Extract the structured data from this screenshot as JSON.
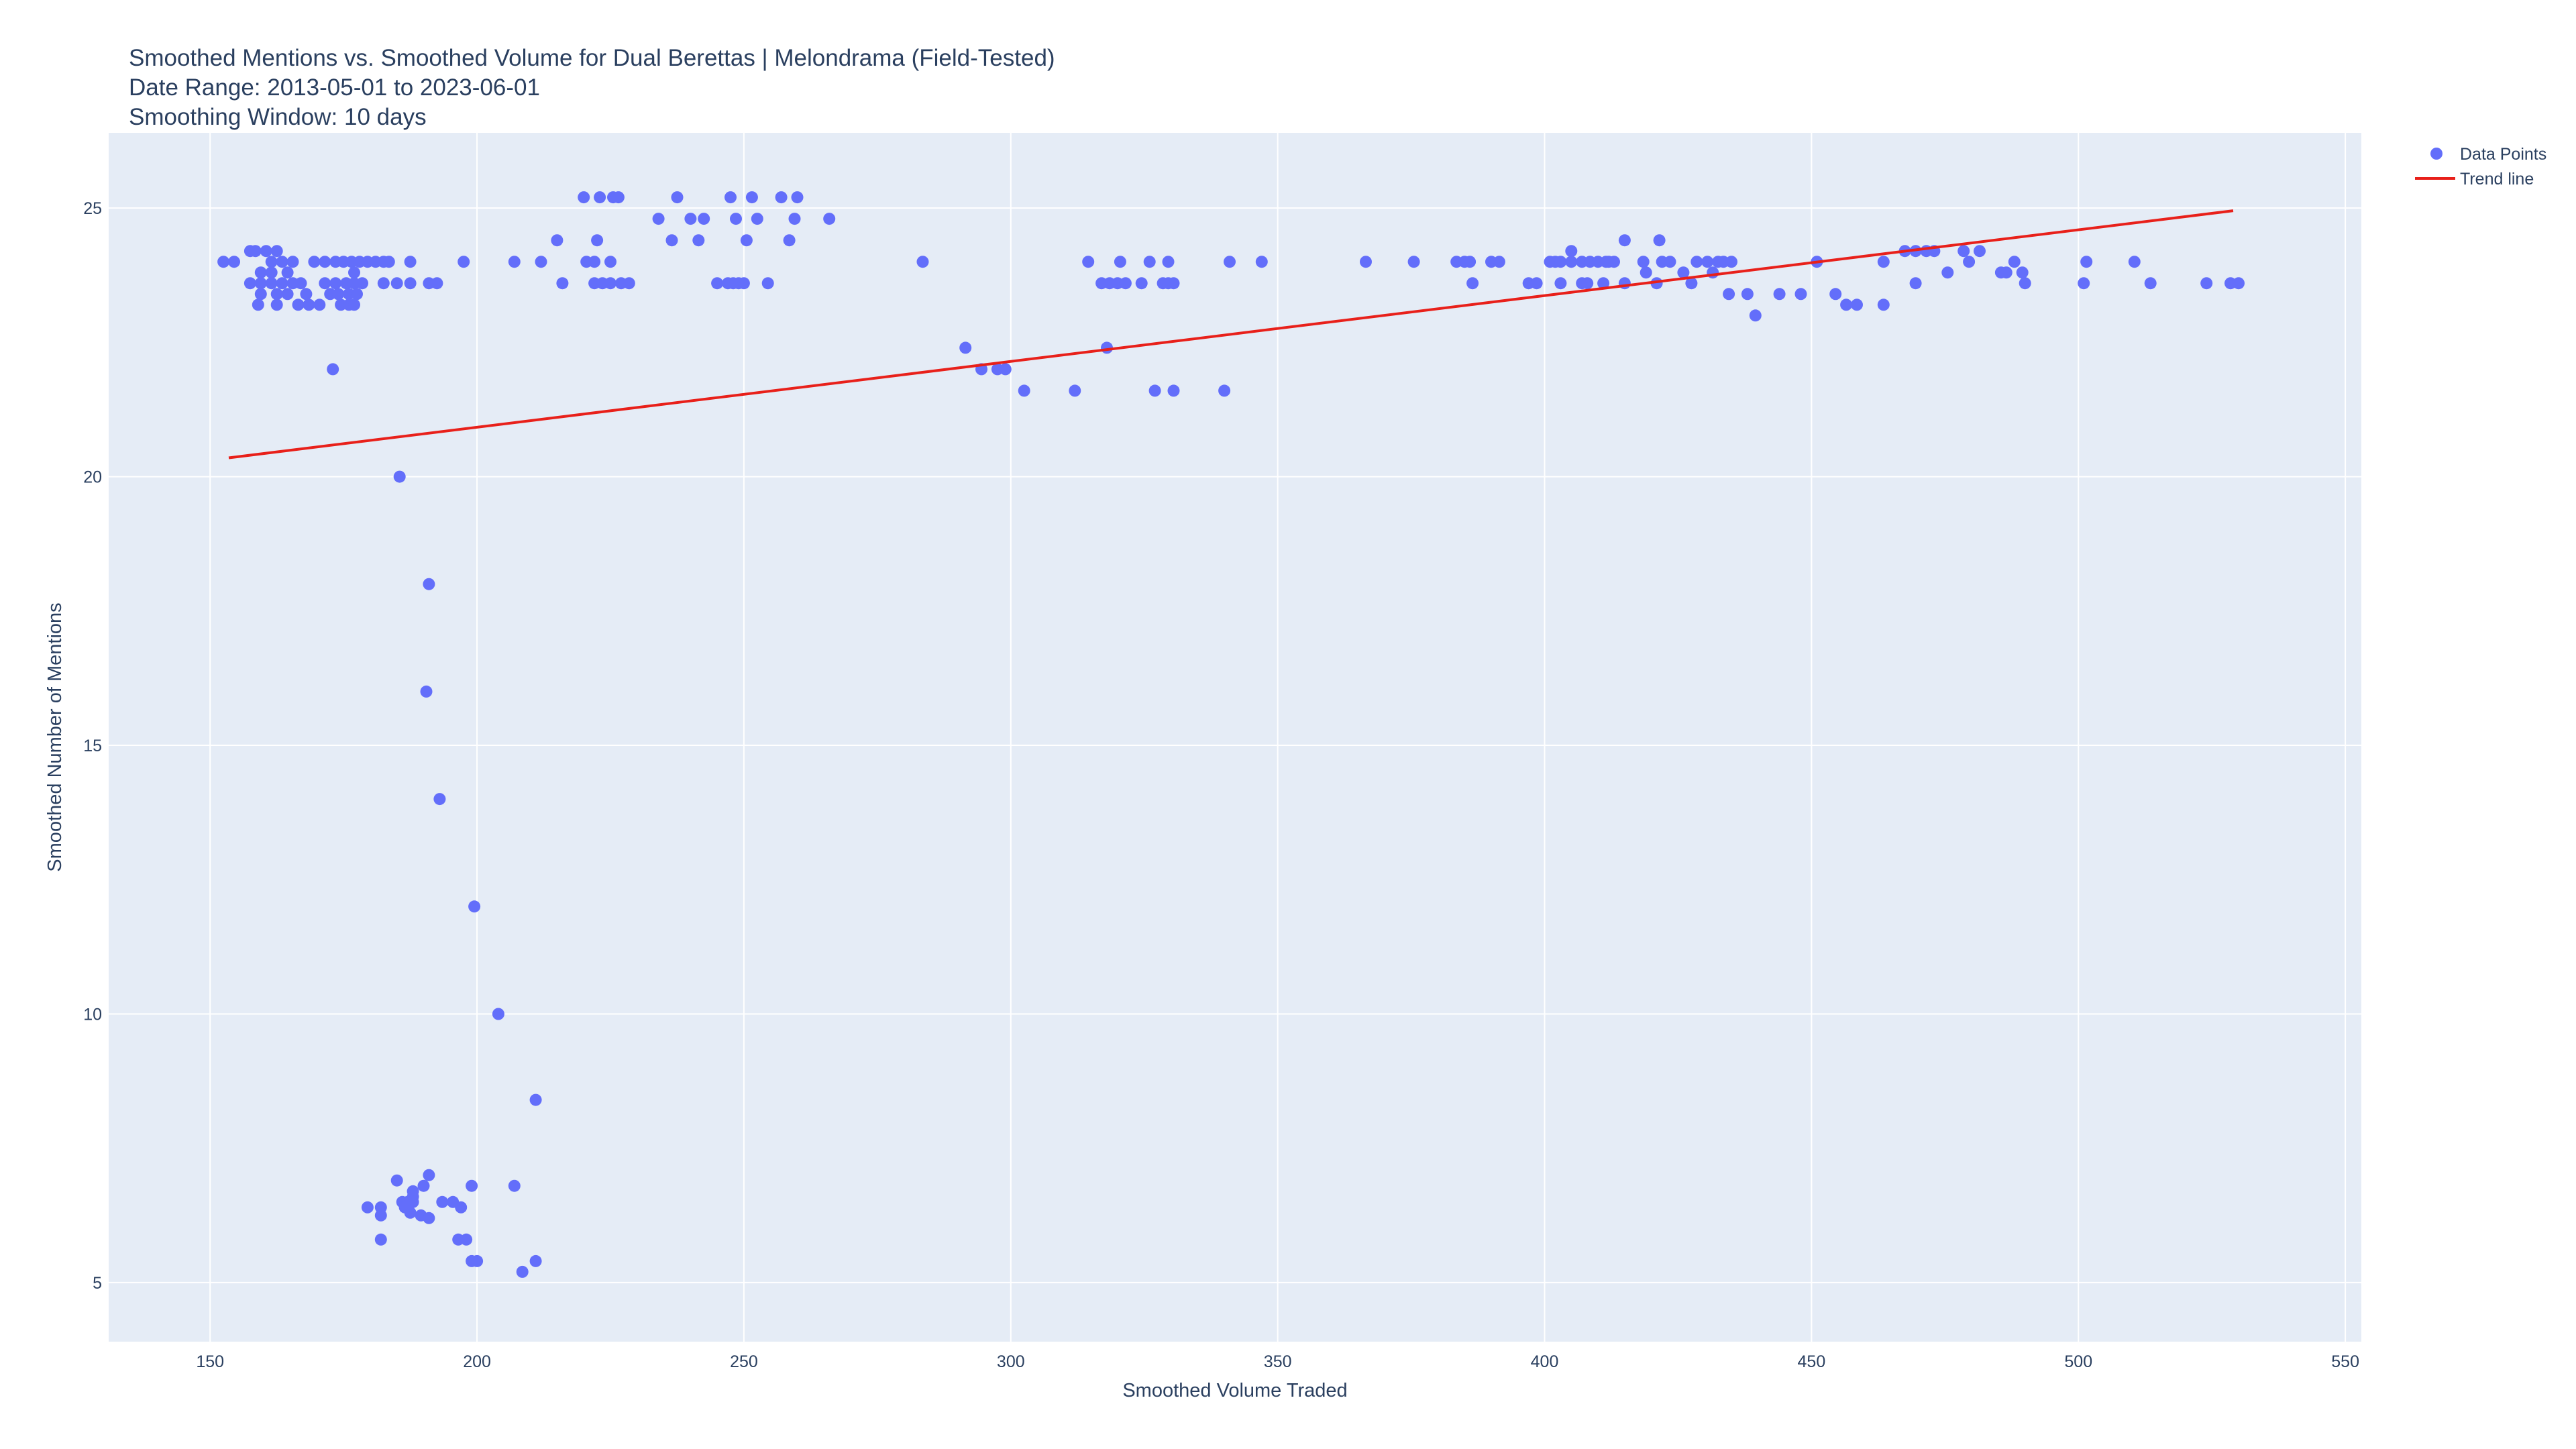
{
  "chart_data": {
    "type": "scatter",
    "title_lines": [
      "Smoothed Mentions vs. Smoothed Volume for Dual Berettas | Melondrama (Field-Tested)",
      "Date Range: 2013-05-01 to 2023-06-01",
      "Smoothing Window: 10 days"
    ],
    "xlabel": "Smoothed Volume Traded",
    "ylabel": "Smoothed Number of Mentions",
    "xlim": [
      131,
      553
    ],
    "ylim": [
      3.9,
      26.4
    ],
    "x_ticks": [
      150,
      200,
      250,
      300,
      350,
      400,
      450,
      500,
      550
    ],
    "y_ticks": [
      5,
      10,
      15,
      20,
      25
    ],
    "x_tick_labels": [
      "150",
      "200",
      "250",
      "300",
      "350",
      "400",
      "450",
      "500",
      "550"
    ],
    "y_tick_labels": [
      "5",
      "10",
      "15",
      "20",
      "25"
    ],
    "grid": true,
    "legend_position": "top-right",
    "legend": [
      {
        "label": "Data Points",
        "kind": "marker",
        "color": "#636efa"
      },
      {
        "label": "Trend line",
        "kind": "line",
        "color": "#e8201a"
      }
    ],
    "colors": {
      "plot_bg": "#e5ecf6",
      "grid": "#ffffff",
      "points": "#636efa",
      "trend": "#e8201a",
      "text": "#2a3f5f"
    },
    "series": [
      {
        "name": "Data Points",
        "mode": "markers",
        "points": [
          [
            152.5,
            24.0
          ],
          [
            154.5,
            24.0
          ],
          [
            157.5,
            24.2
          ],
          [
            158.5,
            24.2
          ],
          [
            160.5,
            24.2
          ],
          [
            162.5,
            24.2
          ],
          [
            161.5,
            24.0
          ],
          [
            163.5,
            24.0
          ],
          [
            165.5,
            24.0
          ],
          [
            159.5,
            23.8
          ],
          [
            161.5,
            23.8
          ],
          [
            164.5,
            23.8
          ],
          [
            157.5,
            23.6
          ],
          [
            159.5,
            23.6
          ],
          [
            161.5,
            23.6
          ],
          [
            163.5,
            23.6
          ],
          [
            165.5,
            23.6
          ],
          [
            167.0,
            23.6
          ],
          [
            159.5,
            23.4
          ],
          [
            162.5,
            23.4
          ],
          [
            164.5,
            23.4
          ],
          [
            168.0,
            23.4
          ],
          [
            159.0,
            23.2
          ],
          [
            162.5,
            23.2
          ],
          [
            166.5,
            23.2
          ],
          [
            168.5,
            23.2
          ],
          [
            170.5,
            23.2
          ],
          [
            169.5,
            24.0
          ],
          [
            171.5,
            24.0
          ],
          [
            173.5,
            24.0
          ],
          [
            175.0,
            24.0
          ],
          [
            176.5,
            24.0
          ],
          [
            178.0,
            24.0
          ],
          [
            179.5,
            24.0
          ],
          [
            181.0,
            24.0
          ],
          [
            182.5,
            24.0
          ],
          [
            183.5,
            24.0
          ],
          [
            171.5,
            23.6
          ],
          [
            173.5,
            23.6
          ],
          [
            175.5,
            23.6
          ],
          [
            177.0,
            23.6
          ],
          [
            178.5,
            23.6
          ],
          [
            172.5,
            23.4
          ],
          [
            174.0,
            23.4
          ],
          [
            176.0,
            23.4
          ],
          [
            177.5,
            23.4
          ],
          [
            174.5,
            23.2
          ],
          [
            176.0,
            23.2
          ],
          [
            177.0,
            23.2
          ],
          [
            177.0,
            23.8
          ],
          [
            173.0,
            22.0
          ],
          [
            182.5,
            23.6
          ],
          [
            185.0,
            23.6
          ],
          [
            187.5,
            23.6
          ],
          [
            187.5,
            24.0
          ],
          [
            191.0,
            23.6
          ],
          [
            192.5,
            23.6
          ],
          [
            197.5,
            24.0
          ],
          [
            185.5,
            20.0
          ],
          [
            191.0,
            18.0
          ],
          [
            190.5,
            16.0
          ],
          [
            193.0,
            14.0
          ],
          [
            199.5,
            12.0
          ],
          [
            204.0,
            10.0
          ],
          [
            211.0,
            8.4
          ],
          [
            207.0,
            6.8
          ],
          [
            191.0,
            7.0
          ],
          [
            185.0,
            6.9
          ],
          [
            199.0,
            6.8
          ],
          [
            190.0,
            6.8
          ],
          [
            188.0,
            6.7
          ],
          [
            188.0,
            6.6
          ],
          [
            186.0,
            6.5
          ],
          [
            187.0,
            6.5
          ],
          [
            188.0,
            6.5
          ],
          [
            193.5,
            6.5
          ],
          [
            195.5,
            6.5
          ],
          [
            179.5,
            6.4
          ],
          [
            182.0,
            6.4
          ],
          [
            186.5,
            6.4
          ],
          [
            197.0,
            6.4
          ],
          [
            187.5,
            6.3
          ],
          [
            182.0,
            6.25
          ],
          [
            189.5,
            6.25
          ],
          [
            191.0,
            6.2
          ],
          [
            182.0,
            5.8
          ],
          [
            196.5,
            5.8
          ],
          [
            198.0,
            5.8
          ],
          [
            199.0,
            5.4
          ],
          [
            200.0,
            5.4
          ],
          [
            211.0,
            5.4
          ],
          [
            208.5,
            5.2
          ],
          [
            207.0,
            24.0
          ],
          [
            212.0,
            24.0
          ],
          [
            215.0,
            24.4
          ],
          [
            216.0,
            23.6
          ],
          [
            220.0,
            25.2
          ],
          [
            220.5,
            24.0
          ],
          [
            222.0,
            24.0
          ],
          [
            222.5,
            24.4
          ],
          [
            222.0,
            23.6
          ],
          [
            223.5,
            23.6
          ],
          [
            225.0,
            23.6
          ],
          [
            223.0,
            25.2
          ],
          [
            225.5,
            25.2
          ],
          [
            226.5,
            25.2
          ],
          [
            225.0,
            24.0
          ],
          [
            227.0,
            23.6
          ],
          [
            228.5,
            23.6
          ],
          [
            234.0,
            24.8
          ],
          [
            236.5,
            24.4
          ],
          [
            237.5,
            25.2
          ],
          [
            240.0,
            24.8
          ],
          [
            241.5,
            24.4
          ],
          [
            242.5,
            24.8
          ],
          [
            245.0,
            23.6
          ],
          [
            247.0,
            23.6
          ],
          [
            248.0,
            23.6
          ],
          [
            249.0,
            23.6
          ],
          [
            250.0,
            23.6
          ],
          [
            247.5,
            25.2
          ],
          [
            248.5,
            24.8
          ],
          [
            250.5,
            24.4
          ],
          [
            251.5,
            25.2
          ],
          [
            252.5,
            24.8
          ],
          [
            254.5,
            23.6
          ],
          [
            257.0,
            25.2
          ],
          [
            258.5,
            24.4
          ],
          [
            259.5,
            24.8
          ],
          [
            260.0,
            25.2
          ],
          [
            266.0,
            24.8
          ],
          [
            283.5,
            24.0
          ],
          [
            291.5,
            22.4
          ],
          [
            294.5,
            22.0
          ],
          [
            297.5,
            22.0
          ],
          [
            299.0,
            22.0
          ],
          [
            302.5,
            21.6
          ],
          [
            312.0,
            21.6
          ],
          [
            314.5,
            24.0
          ],
          [
            317.0,
            23.6
          ],
          [
            318.5,
            23.6
          ],
          [
            320.0,
            23.6
          ],
          [
            321.5,
            23.6
          ],
          [
            318.0,
            22.4
          ],
          [
            320.5,
            24.0
          ],
          [
            324.5,
            23.6
          ],
          [
            326.0,
            24.0
          ],
          [
            327.0,
            21.6
          ],
          [
            328.5,
            23.6
          ],
          [
            329.5,
            23.6
          ],
          [
            330.5,
            23.6
          ],
          [
            329.5,
            24.0
          ],
          [
            330.5,
            21.6
          ],
          [
            340.0,
            21.6
          ],
          [
            341.0,
            24.0
          ],
          [
            347.0,
            24.0
          ],
          [
            366.5,
            24.0
          ],
          [
            375.5,
            24.0
          ],
          [
            383.5,
            24.0
          ],
          [
            385.0,
            24.0
          ],
          [
            386.0,
            24.0
          ],
          [
            386.5,
            23.6
          ],
          [
            390.0,
            24.0
          ],
          [
            391.5,
            24.0
          ],
          [
            397.0,
            23.6
          ],
          [
            398.5,
            23.6
          ],
          [
            401.0,
            24.0
          ],
          [
            402.0,
            24.0
          ],
          [
            403.0,
            24.0
          ],
          [
            405.0,
            24.0
          ],
          [
            405.0,
            24.2
          ],
          [
            403.0,
            23.6
          ],
          [
            407.0,
            23.6
          ],
          [
            408.0,
            23.6
          ],
          [
            407.0,
            24.0
          ],
          [
            408.5,
            24.0
          ],
          [
            410.0,
            24.0
          ],
          [
            411.5,
            24.0
          ],
          [
            412.0,
            24.0
          ],
          [
            413.0,
            24.0
          ],
          [
            411.0,
            23.6
          ],
          [
            415.0,
            24.4
          ],
          [
            415.0,
            23.6
          ],
          [
            418.5,
            24.0
          ],
          [
            419.0,
            23.8
          ],
          [
            421.0,
            23.6
          ],
          [
            421.5,
            24.4
          ],
          [
            422.0,
            24.0
          ],
          [
            423.5,
            24.0
          ],
          [
            426.0,
            23.8
          ],
          [
            427.5,
            23.6
          ],
          [
            428.5,
            24.0
          ],
          [
            430.5,
            24.0
          ],
          [
            431.5,
            23.8
          ],
          [
            432.5,
            24.0
          ],
          [
            433.5,
            24.0
          ],
          [
            435.0,
            24.0
          ],
          [
            434.5,
            23.4
          ],
          [
            438.0,
            23.4
          ],
          [
            439.5,
            23.0
          ],
          [
            444.0,
            23.4
          ],
          [
            448.0,
            23.4
          ],
          [
            451.0,
            24.0
          ],
          [
            454.5,
            23.4
          ],
          [
            456.5,
            23.2
          ],
          [
            458.5,
            23.2
          ],
          [
            463.5,
            23.2
          ],
          [
            463.5,
            24.0
          ],
          [
            467.5,
            24.2
          ],
          [
            469.5,
            24.2
          ],
          [
            471.5,
            24.2
          ],
          [
            473.0,
            24.2
          ],
          [
            469.5,
            23.6
          ],
          [
            475.5,
            23.8
          ],
          [
            478.5,
            24.2
          ],
          [
            479.5,
            24.0
          ],
          [
            481.5,
            24.2
          ],
          [
            485.5,
            23.8
          ],
          [
            486.5,
            23.8
          ],
          [
            488.0,
            24.0
          ],
          [
            489.5,
            23.8
          ],
          [
            490.0,
            23.6
          ],
          [
            501.0,
            23.6
          ],
          [
            501.5,
            24.0
          ],
          [
            510.5,
            24.0
          ],
          [
            513.5,
            23.6
          ],
          [
            524.0,
            23.6
          ],
          [
            528.5,
            23.6
          ],
          [
            530.0,
            23.6
          ]
        ]
      },
      {
        "name": "Trend line",
        "mode": "line",
        "x": [
          153.5,
          529
        ],
        "y": [
          20.35,
          24.95
        ]
      }
    ]
  }
}
